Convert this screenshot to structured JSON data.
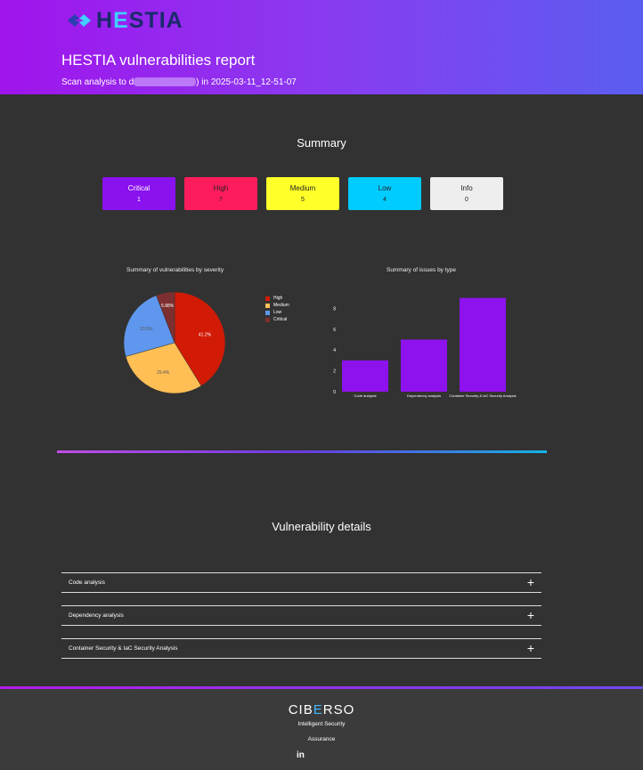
{
  "header": {
    "logo_text_a": "H",
    "logo_text_e": "E",
    "logo_text_b": "STIA",
    "title": "HESTIA vulnerabilities report",
    "subtitle_prefix": "Scan analysis to d",
    "subtitle_suffix": ") in 2025-03-11_12-51-07"
  },
  "summary": {
    "title": "Summary",
    "cards": [
      {
        "label": "Critical",
        "count": "1",
        "bg": "#8a12ee",
        "fg": "#ffffff"
      },
      {
        "label": "High",
        "count": "7",
        "bg": "#ff1c5c",
        "fg": "#222222"
      },
      {
        "label": "Medium",
        "count": "5",
        "bg": "#ffff2a",
        "fg": "#222222"
      },
      {
        "label": "Low",
        "count": "4",
        "bg": "#00ccff",
        "fg": "#222222"
      },
      {
        "label": "Info",
        "count": "0",
        "bg": "#eeeeee",
        "fg": "#222222"
      }
    ]
  },
  "chart_data": [
    {
      "type": "pie",
      "title": "Summary of vulnerabilities by severity",
      "legend_position": "right",
      "labels": [
        "High",
        "Medium",
        "Low",
        "Critical"
      ],
      "values": [
        41.2,
        29.4,
        23.5,
        5.88
      ],
      "value_labels": [
        "41.2%",
        "29.4%",
        "23.5%",
        "5.88%"
      ],
      "colors": [
        "#d11b06",
        "#ffbf55",
        "#5f97ee",
        "#7d2f2f"
      ]
    },
    {
      "type": "bar",
      "title": "Summary of issues by type",
      "categories": [
        "Code analysis",
        "Dependency analysis",
        "Container Security & IaC Security Analysis"
      ],
      "values": [
        3,
        5,
        9
      ],
      "ylim": [
        0,
        10
      ],
      "yticks": [
        0,
        2,
        4,
        6,
        8
      ],
      "color": "#8d12ee"
    }
  ],
  "details": {
    "title": "Vulnerability details",
    "items": [
      {
        "label": "Code analysis",
        "plus": "+"
      },
      {
        "label": "Dependency analysis",
        "plus": "+"
      },
      {
        "label": "Container Security & IaC Security Analysis",
        "plus": "+"
      }
    ]
  },
  "footer": {
    "logo_a": "CIB",
    "logo_e": "E",
    "logo_b": "RSO",
    "tagline_1": "Intelligent Security",
    "tagline_2": "Assurance",
    "linkedin": "in"
  },
  "icons": {
    "logo": "hestia-logo-icon",
    "linkedin": "linkedin-icon",
    "expand": "plus-icon"
  }
}
